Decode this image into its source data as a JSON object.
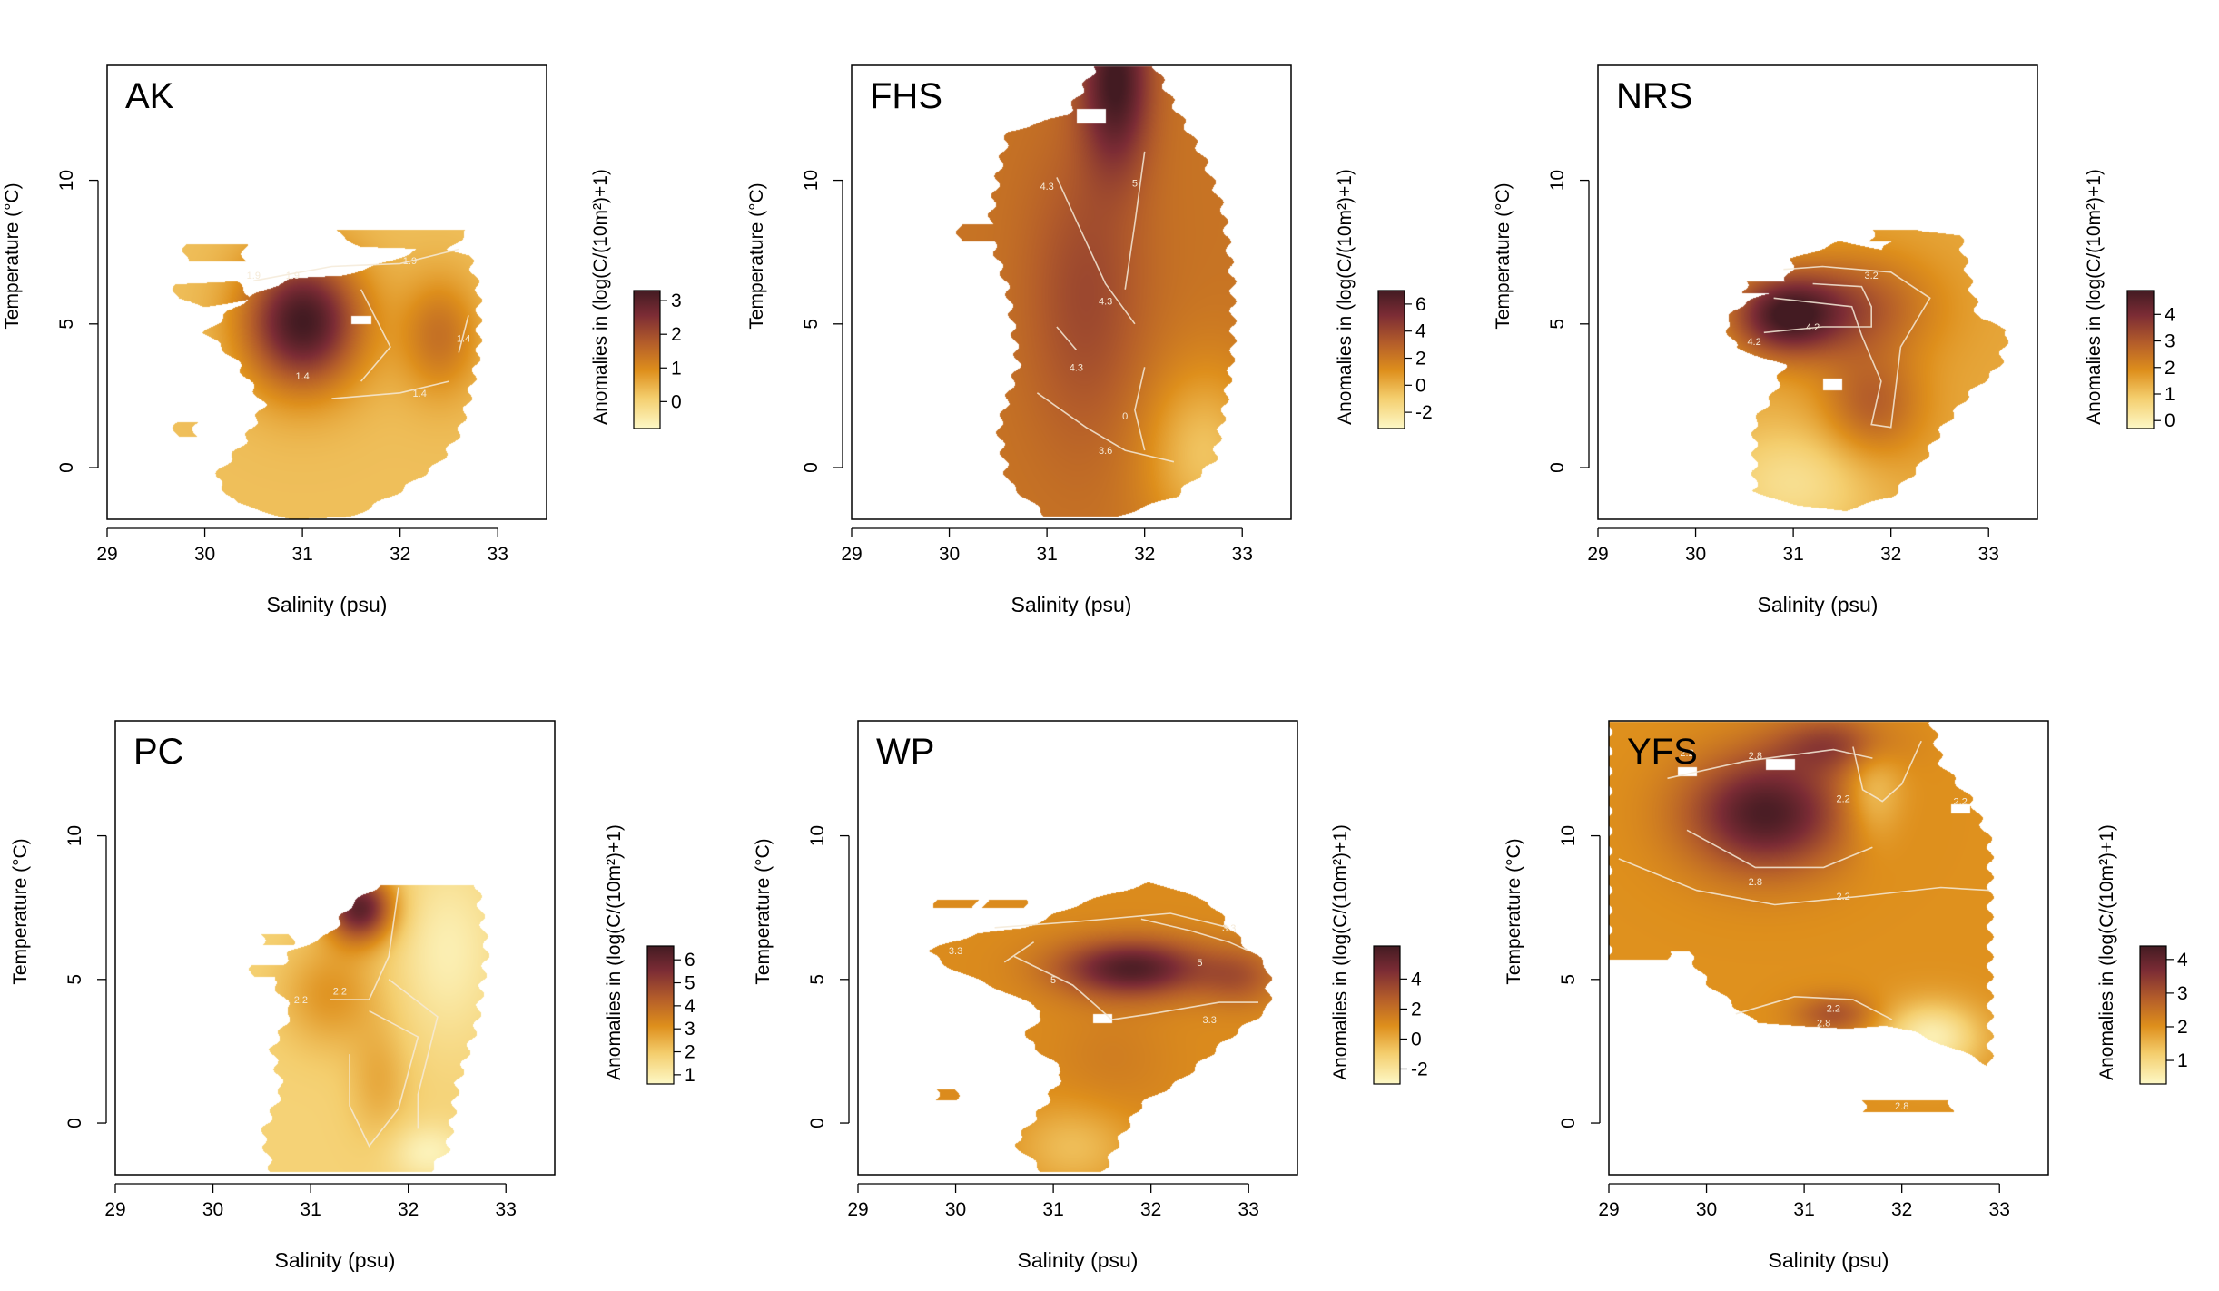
{
  "chart_data": [
    {
      "type": "heatmap",
      "title": "AK",
      "xlabel": "Salinity (psu)",
      "ylabel": "Temperature (°C)",
      "xlim": [
        29,
        33.5
      ],
      "ylim": [
        -1.8,
        14
      ],
      "x_ticks": [
        "29",
        "30",
        "31",
        "32",
        "33"
      ],
      "y_ticks": [
        "0",
        "5",
        "10"
      ],
      "colorbar": {
        "label": "Anomalies in (log(C/(10m²)+1)",
        "ticks": [
          "0",
          "1",
          "2",
          "3"
        ],
        "range": [
          -0.8,
          3.3
        ]
      },
      "contour_labels": [
        "1.4",
        "1.9",
        "1.9",
        "1.4",
        "1.4",
        "1.9"
      ],
      "hotspots": [
        {
          "x": 31.0,
          "y": 5.1,
          "value": 3.2
        }
      ]
    },
    {
      "type": "heatmap",
      "title": "FHS",
      "xlabel": "Salinity (psu)",
      "ylabel": "Temperature (°C)",
      "xlim": [
        29,
        33.5
      ],
      "ylim": [
        -1.8,
        14
      ],
      "x_ticks": [
        "29",
        "30",
        "31",
        "32",
        "33"
      ],
      "y_ticks": [
        "0",
        "5",
        "10"
      ],
      "colorbar": {
        "label": "Anomalies in (log(C/(10m²)+1)",
        "ticks": [
          "-2",
          "0",
          "2",
          "4",
          "6"
        ],
        "range": [
          -3.2,
          7.0
        ]
      },
      "contour_labels": [
        "4.3",
        "5",
        "4.3",
        "4.3",
        "0",
        "3.6"
      ],
      "hotspots": [
        {
          "x": 31.7,
          "y": 13.5,
          "value": 6.8
        }
      ]
    },
    {
      "type": "heatmap",
      "title": "NRS",
      "xlabel": "Salinity (psu)",
      "ylabel": "Temperature (°C)",
      "xlim": [
        29,
        33.5
      ],
      "ylim": [
        -1.8,
        14
      ],
      "x_ticks": [
        "29",
        "30",
        "31",
        "32",
        "33"
      ],
      "y_ticks": [
        "0",
        "5",
        "10"
      ],
      "colorbar": {
        "label": "Anomalies in (log(C/(10m²)+1)",
        "ticks": [
          "0",
          "1",
          "2",
          "3",
          "4"
        ],
        "range": [
          -0.3,
          4.9
        ]
      },
      "contour_labels": [
        "3.2",
        "4.2",
        "4.2"
      ],
      "hotspots": [
        {
          "x": 30.9,
          "y": 5.4,
          "value": 4.8
        }
      ]
    },
    {
      "type": "heatmap",
      "title": "PC",
      "xlabel": "Salinity (psu)",
      "ylabel": "Temperature (°C)",
      "xlim": [
        29,
        33.5
      ],
      "ylim": [
        -1.8,
        14
      ],
      "x_ticks": [
        "29",
        "30",
        "31",
        "32",
        "33"
      ],
      "y_ticks": [
        "0",
        "5",
        "10"
      ],
      "colorbar": {
        "label": "Anomalies in (log(C/(10m²)+1)",
        "ticks": [
          "1",
          "2",
          "3",
          "4",
          "5",
          "6"
        ],
        "range": [
          0.6,
          6.6
        ]
      },
      "contour_labels": [
        "2.2",
        "2.2"
      ],
      "hotspots": [
        {
          "x": 31.5,
          "y": 7.3,
          "value": 6.3
        }
      ]
    },
    {
      "type": "heatmap",
      "title": "WP",
      "xlabel": "Salinity (psu)",
      "ylabel": "Temperature (°C)",
      "xlim": [
        29,
        33.5
      ],
      "ylim": [
        -1.8,
        14
      ],
      "x_ticks": [
        "29",
        "30",
        "31",
        "32",
        "33"
      ],
      "y_ticks": [
        "0",
        "5",
        "10"
      ],
      "colorbar": {
        "label": "Anomalies in (log(C/(10m²)+1)",
        "ticks": [
          "-2",
          "0",
          "2",
          "4"
        ],
        "range": [
          -3.0,
          6.2
        ]
      },
      "contour_labels": [
        "3.3",
        "3.3",
        "5",
        "5",
        "3.3"
      ],
      "hotspots": [
        {
          "x": 31.8,
          "y": 5.4,
          "value": 6.0
        }
      ]
    },
    {
      "type": "heatmap",
      "title": "YFS",
      "xlabel": "Salinity (psu)",
      "ylabel": "Temperature (°C)",
      "xlim": [
        29,
        33.5
      ],
      "ylim": [
        -1.8,
        14
      ],
      "x_ticks": [
        "29",
        "30",
        "31",
        "32",
        "33"
      ],
      "y_ticks": [
        "0",
        "5",
        "10"
      ],
      "colorbar": {
        "label": "Anomalies in (log(C/(10m²)+1)",
        "ticks": [
          "1",
          "2",
          "3",
          "4"
        ],
        "range": [
          0.3,
          4.4
        ]
      },
      "contour_labels": [
        "2.2",
        "2.8",
        "2.2",
        "2.2",
        "2.8",
        "2.2",
        "2.2",
        "2.8",
        "2.8"
      ],
      "hotspots": [
        {
          "x": 30.6,
          "y": 10.8,
          "value": 4.3
        }
      ]
    }
  ]
}
